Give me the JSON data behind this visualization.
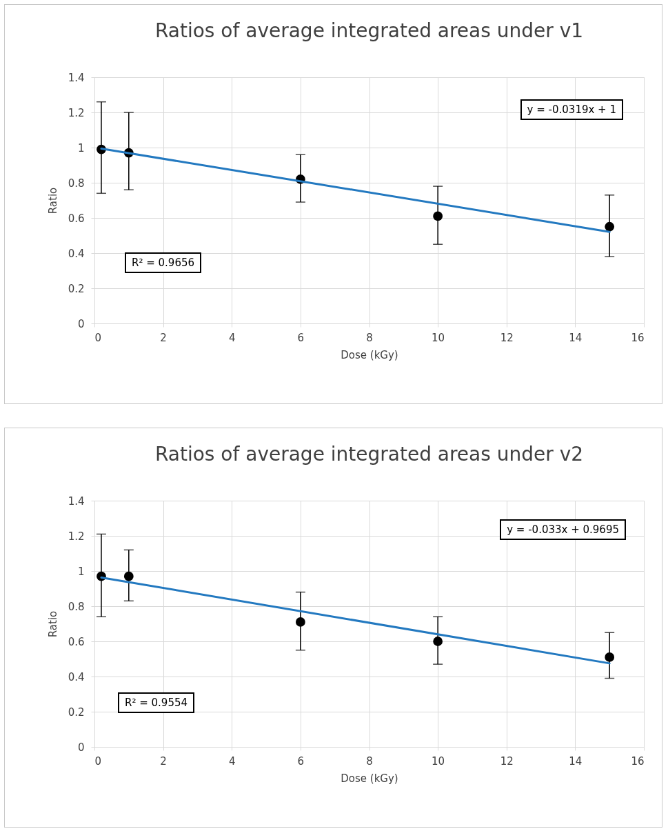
{
  "chart_data": [
    {
      "type": "scatter",
      "title": "Ratios of average integrated areas under v1",
      "xlabel": "Dose (kGy)",
      "ylabel": "Ratio",
      "xlim": [
        0,
        16
      ],
      "xticks": [
        0,
        2,
        4,
        6,
        8,
        10,
        12,
        14,
        16
      ],
      "ylim": [
        0,
        1.4
      ],
      "yticks": [
        0,
        0.2,
        0.4,
        0.6,
        0.8,
        1,
        1.2,
        1.4
      ],
      "grid": true,
      "annotations": [
        "y = -0.0319x + 1",
        "R² = 0.9656"
      ],
      "series": [
        {
          "color": "#000000",
          "marker": "circle",
          "x": [
            0.2,
            1,
            6,
            10,
            15
          ],
          "values": [
            0.99,
            0.97,
            0.82,
            0.61,
            0.55
          ],
          "errors": [
            [
              0.74,
              1.26
            ],
            [
              0.76,
              1.2
            ],
            [
              0.69,
              0.96
            ],
            [
              0.45,
              0.78
            ],
            [
              0.38,
              0.73
            ]
          ]
        },
        {
          "type": "line",
          "color": "#2379c0",
          "x": [
            0.2,
            15
          ],
          "values": [
            0.994,
            0.521
          ]
        }
      ]
    },
    {
      "type": "scatter",
      "title": "Ratios of average integrated areas under v2",
      "xlabel": "Dose (kGy)",
      "ylabel": "Ratio",
      "xlim": [
        0,
        16
      ],
      "xticks": [
        0,
        2,
        4,
        6,
        8,
        10,
        12,
        14,
        16
      ],
      "ylim": [
        0,
        1.4
      ],
      "yticks": [
        0,
        0.2,
        0.4,
        0.6,
        0.8,
        1,
        1.2,
        1.4
      ],
      "grid": true,
      "annotations": [
        "y = -0.033x + 0.9695",
        "R² = 0.9554"
      ],
      "series": [
        {
          "color": "#000000",
          "marker": "circle",
          "x": [
            0.2,
            1,
            6,
            10,
            15
          ],
          "values": [
            0.97,
            0.97,
            0.71,
            0.6,
            0.51
          ],
          "errors": [
            [
              0.74,
              1.21
            ],
            [
              0.83,
              1.12
            ],
            [
              0.55,
              0.88
            ],
            [
              0.47,
              0.74
            ],
            [
              0.39,
              0.65
            ]
          ]
        },
        {
          "type": "line",
          "color": "#2379c0",
          "x": [
            0.2,
            15
          ],
          "values": [
            0.963,
            0.475
          ]
        }
      ]
    }
  ]
}
